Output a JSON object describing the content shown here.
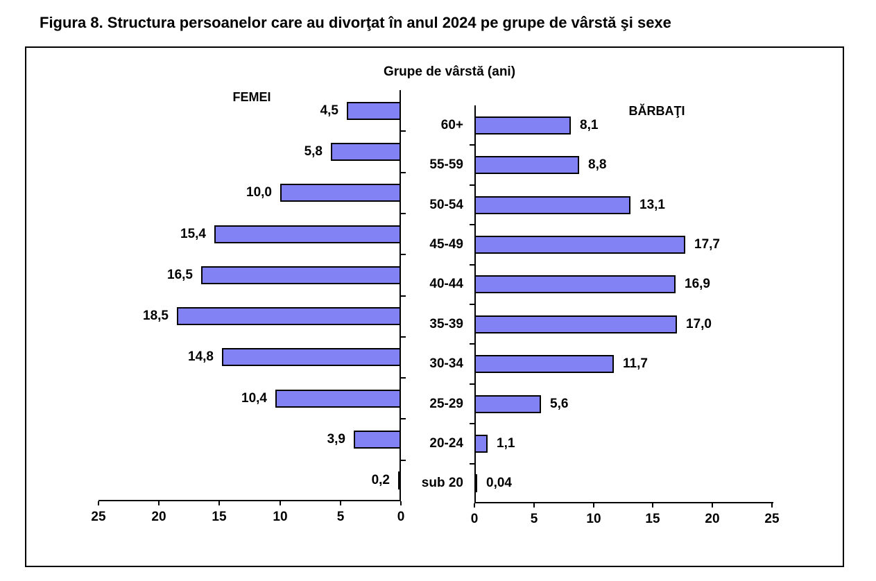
{
  "page": {
    "title": "Figura 8. Structura persoanelor care au divorţat în anul 2024 pe grupe de vârstă şi sexe"
  },
  "chart": {
    "axis_title": "Grupe de vârstă (ani)",
    "female_label": "FEMEI",
    "male_label": "BĂRBAŢI",
    "bar_fill": "#8282f5",
    "bar_border": "#000000",
    "female_axis_ticks": [
      "25",
      "20",
      "15",
      "10",
      "5",
      "0"
    ],
    "male_axis_ticks": [
      "0",
      "5",
      "10",
      "15",
      "20",
      "25"
    ]
  },
  "chart_data": {
    "type": "bar",
    "orientation": "horizontal-pyramid",
    "title": "Grupe de vârstă (ani)",
    "categories": [
      "60+",
      "55-59",
      "50-54",
      "45-49",
      "40-44",
      "35-39",
      "30-34",
      "25-29",
      "20-24",
      "sub 20"
    ],
    "series": [
      {
        "name": "FEMEI",
        "side": "left",
        "values": [
          4.5,
          5.8,
          10.0,
          15.4,
          16.5,
          18.5,
          14.8,
          10.4,
          3.9,
          0.2
        ],
        "labels": [
          "4,5",
          "5,8",
          "10,0",
          "15,4",
          "16,5",
          "18,5",
          "14,8",
          "10,4",
          "3,9",
          "0,2"
        ]
      },
      {
        "name": "BĂRBAŢI",
        "side": "right",
        "values": [
          8.1,
          8.8,
          13.1,
          17.7,
          16.9,
          17.0,
          11.7,
          5.6,
          1.1,
          0.04
        ],
        "labels": [
          "8,1",
          "8,8",
          "13,1",
          "17,7",
          "16,9",
          "17,0",
          "11,7",
          "5,6",
          "1,1",
          "0,04"
        ]
      }
    ],
    "xlim": [
      0,
      25
    ],
    "xticks": [
      0,
      5,
      10,
      15,
      20,
      25
    ],
    "grid": false,
    "legend_position": "panel-headers"
  }
}
